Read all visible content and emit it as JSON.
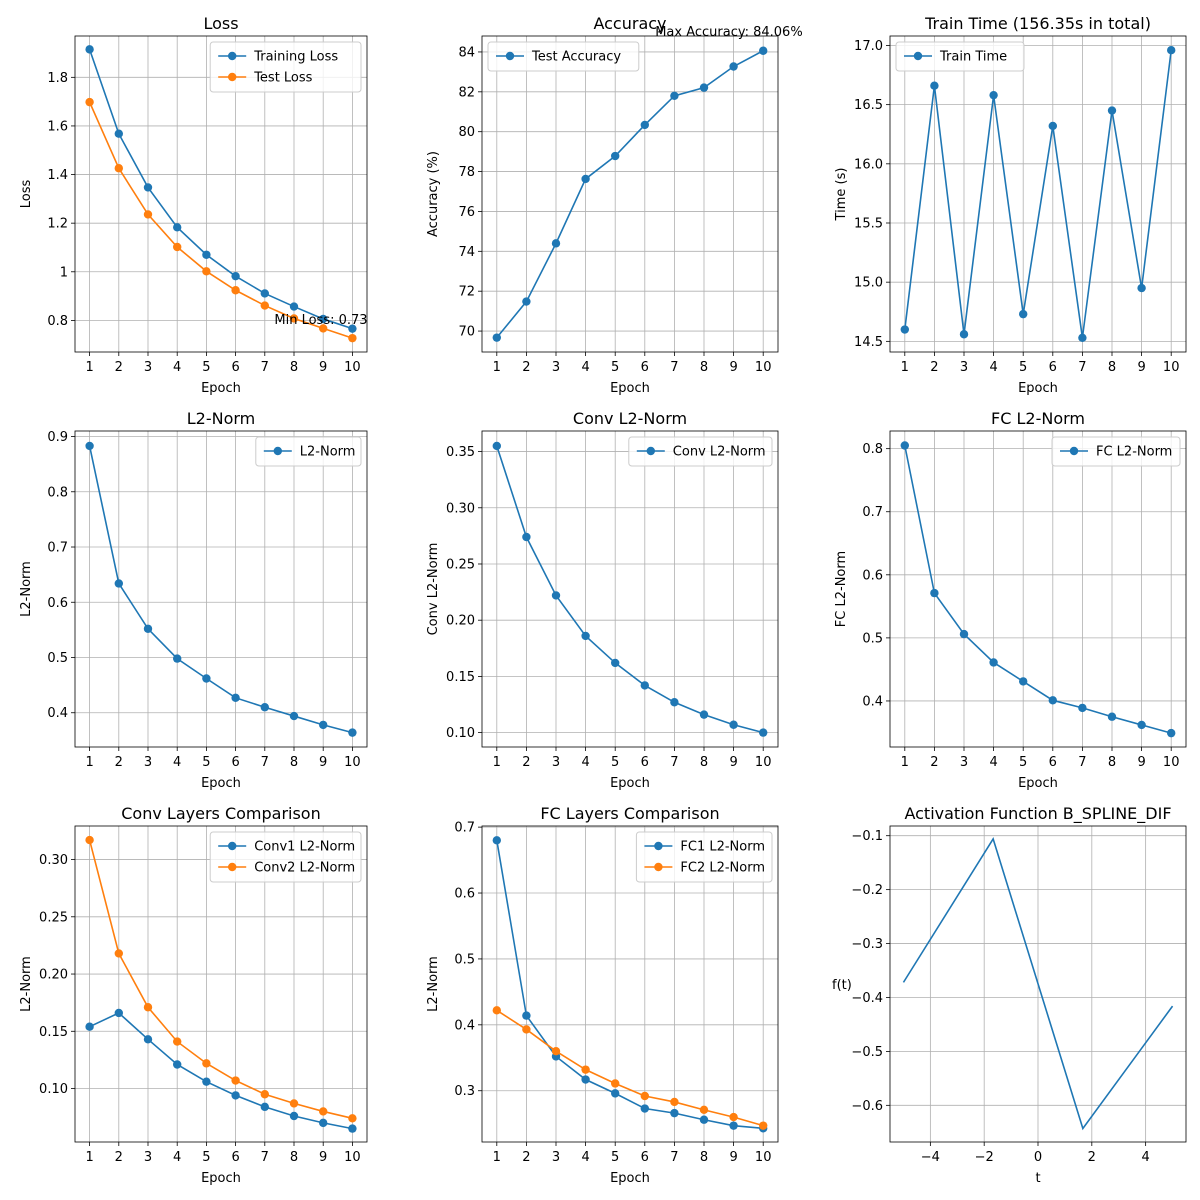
{
  "chart_data": [
    {
      "type": "line",
      "title": "Loss",
      "xlabel": "Epoch",
      "ylabel": "Loss",
      "x": [
        1,
        2,
        3,
        4,
        5,
        6,
        7,
        8,
        9,
        10
      ],
      "xlim": [
        0.5,
        10.5
      ],
      "ylim": [
        0.67,
        1.97
      ],
      "xticks": [
        1,
        2,
        3,
        4,
        5,
        6,
        7,
        8,
        9,
        10
      ],
      "yticks": [
        0.8,
        1.0,
        1.2,
        1.4,
        1.6,
        1.8
      ],
      "grid": true,
      "legend": "upper-right",
      "series": [
        {
          "name": "Training Loss",
          "color": "#1f77b4",
          "marker": true,
          "values": [
            1.915,
            1.568,
            1.347,
            1.183,
            1.07,
            0.982,
            0.911,
            0.857,
            0.806,
            0.766
          ]
        },
        {
          "name": "Test Loss",
          "color": "#ff7f0e",
          "marker": true,
          "values": [
            1.698,
            1.426,
            1.236,
            1.102,
            1.002,
            0.924,
            0.861,
            0.808,
            0.767,
            0.727
          ]
        }
      ],
      "annotations": [
        {
          "text": "Min Loss: 0.73",
          "x": 10,
          "y": 0.727
        }
      ]
    },
    {
      "type": "line",
      "title": "Accuracy",
      "xlabel": "Epoch",
      "ylabel": "Accuracy (%)",
      "x": [
        1,
        2,
        3,
        4,
        5,
        6,
        7,
        8,
        9,
        10
      ],
      "xlim": [
        0.5,
        10.5
      ],
      "ylim": [
        68.95,
        84.8
      ],
      "xticks": [
        1,
        2,
        3,
        4,
        5,
        6,
        7,
        8,
        9,
        10
      ],
      "yticks": [
        70,
        72,
        74,
        76,
        78,
        80,
        82,
        84
      ],
      "grid": true,
      "legend": "upper-left",
      "series": [
        {
          "name": "Test Accuracy",
          "color": "#1f77b4",
          "marker": true,
          "values": [
            69.67,
            71.48,
            74.4,
            77.63,
            78.78,
            80.34,
            81.8,
            82.21,
            83.27,
            84.06
          ]
        }
      ],
      "annotations": [
        {
          "text": "Max Accuracy: 84.06%",
          "x": 10,
          "y": 84.06
        }
      ]
    },
    {
      "type": "line",
      "title": "Train Time (156.35s in total)",
      "xlabel": "Epoch",
      "ylabel": "Time (s)",
      "x": [
        1,
        2,
        3,
        4,
        5,
        6,
        7,
        8,
        9,
        10
      ],
      "xlim": [
        0.5,
        10.5
      ],
      "ylim": [
        14.41,
        17.08
      ],
      "xticks": [
        1,
        2,
        3,
        4,
        5,
        6,
        7,
        8,
        9,
        10
      ],
      "yticks": [
        14.5,
        15.0,
        15.5,
        16.0,
        16.5,
        17.0
      ],
      "ytick_labels": [
        "14.5",
        "15.0",
        "15.5",
        "16.0",
        "16.5",
        "17.0"
      ],
      "grid": true,
      "legend": "upper-left",
      "series": [
        {
          "name": "Train Time",
          "color": "#1f77b4",
          "marker": true,
          "values": [
            14.6,
            16.66,
            14.56,
            16.58,
            14.73,
            16.32,
            14.53,
            16.45,
            14.95,
            16.96
          ]
        }
      ]
    },
    {
      "type": "line",
      "title": "L2-Norm",
      "xlabel": "Epoch",
      "ylabel": "L2-Norm",
      "x": [
        1,
        2,
        3,
        4,
        5,
        6,
        7,
        8,
        9,
        10
      ],
      "xlim": [
        0.5,
        10.5
      ],
      "ylim": [
        0.338,
        0.91
      ],
      "xticks": [
        1,
        2,
        3,
        4,
        5,
        6,
        7,
        8,
        9,
        10
      ],
      "yticks": [
        0.4,
        0.5,
        0.6,
        0.7,
        0.8,
        0.9
      ],
      "grid": true,
      "legend": "upper-right",
      "series": [
        {
          "name": "L2-Norm",
          "color": "#1f77b4",
          "marker": true,
          "values": [
            0.883,
            0.634,
            0.552,
            0.498,
            0.462,
            0.427,
            0.41,
            0.394,
            0.378,
            0.364
          ]
        }
      ]
    },
    {
      "type": "line",
      "title": "Conv L2-Norm",
      "xlabel": "Epoch",
      "ylabel": "Conv L2-Norm",
      "x": [
        1,
        2,
        3,
        4,
        5,
        6,
        7,
        8,
        9,
        10
      ],
      "xlim": [
        0.5,
        10.5
      ],
      "ylim": [
        0.0872,
        0.3683
      ],
      "xticks": [
        1,
        2,
        3,
        4,
        5,
        6,
        7,
        8,
        9,
        10
      ],
      "yticks": [
        0.1,
        0.15,
        0.2,
        0.25,
        0.3,
        0.35
      ],
      "ytick_labels": [
        "0.10",
        "0.15",
        "0.20",
        "0.25",
        "0.30",
        "0.35"
      ],
      "grid": true,
      "legend": "upper-right",
      "series": [
        {
          "name": "Conv L2-Norm",
          "color": "#1f77b4",
          "marker": true,
          "values": [
            0.355,
            0.274,
            0.222,
            0.186,
            0.162,
            0.142,
            0.127,
            0.116,
            0.107,
            0.1
          ]
        }
      ]
    },
    {
      "type": "line",
      "title": "FC L2-Norm",
      "xlabel": "Epoch",
      "ylabel": "FC L2-Norm",
      "x": [
        1,
        2,
        3,
        4,
        5,
        6,
        7,
        8,
        9,
        10
      ],
      "xlim": [
        0.5,
        10.5
      ],
      "ylim": [
        0.327,
        0.828
      ],
      "xticks": [
        1,
        2,
        3,
        4,
        5,
        6,
        7,
        8,
        9,
        10
      ],
      "yticks": [
        0.4,
        0.5,
        0.6,
        0.7,
        0.8
      ],
      "grid": true,
      "legend": "upper-right",
      "series": [
        {
          "name": "FC L2-Norm",
          "color": "#1f77b4",
          "marker": true,
          "values": [
            0.805,
            0.571,
            0.506,
            0.461,
            0.431,
            0.401,
            0.389,
            0.375,
            0.362,
            0.349
          ]
        }
      ]
    },
    {
      "type": "line",
      "title": "Conv Layers Comparison",
      "xlabel": "Epoch",
      "ylabel": "L2-Norm",
      "x": [
        1,
        2,
        3,
        4,
        5,
        6,
        7,
        8,
        9,
        10
      ],
      "xlim": [
        0.5,
        10.5
      ],
      "ylim": [
        0.0533,
        0.3293
      ],
      "xticks": [
        1,
        2,
        3,
        4,
        5,
        6,
        7,
        8,
        9,
        10
      ],
      "yticks": [
        0.1,
        0.15,
        0.2,
        0.25,
        0.3
      ],
      "ytick_labels": [
        "0.10",
        "0.15",
        "0.20",
        "0.25",
        "0.30"
      ],
      "grid": true,
      "legend": "upper-right",
      "series": [
        {
          "name": "Conv1 L2-Norm",
          "color": "#1f77b4",
          "marker": true,
          "values": [
            0.154,
            0.166,
            0.143,
            0.121,
            0.106,
            0.094,
            0.084,
            0.076,
            0.07,
            0.065
          ]
        },
        {
          "name": "Conv2 L2-Norm",
          "color": "#ff7f0e",
          "marker": true,
          "values": [
            0.317,
            0.218,
            0.171,
            0.141,
            0.122,
            0.107,
            0.095,
            0.087,
            0.08,
            0.074
          ]
        }
      ]
    },
    {
      "type": "line",
      "title": "FC Layers Comparison",
      "xlabel": "Epoch",
      "ylabel": "L2-Norm",
      "x": [
        1,
        2,
        3,
        4,
        5,
        6,
        7,
        8,
        9,
        10
      ],
      "xlim": [
        0.5,
        10.5
      ],
      "ylim": [
        0.2222,
        0.7017
      ],
      "xticks": [
        1,
        2,
        3,
        4,
        5,
        6,
        7,
        8,
        9,
        10
      ],
      "yticks": [
        0.3,
        0.4,
        0.5,
        0.6,
        0.7
      ],
      "grid": true,
      "legend": "upper-right",
      "series": [
        {
          "name": "FC1 L2-Norm",
          "color": "#1f77b4",
          "marker": true,
          "values": [
            0.68,
            0.414,
            0.352,
            0.317,
            0.296,
            0.273,
            0.266,
            0.256,
            0.247,
            0.243
          ]
        },
        {
          "name": "FC2 L2-Norm",
          "color": "#ff7f0e",
          "marker": true,
          "values": [
            0.422,
            0.393,
            0.36,
            0.332,
            0.311,
            0.292,
            0.283,
            0.271,
            0.26,
            0.247
          ]
        }
      ]
    },
    {
      "type": "line",
      "title": "Activation Function B_SPLINE_DIF",
      "xlabel": "t",
      "ylabel": "f(t)",
      "x": [
        -5,
        -1.667,
        1.667,
        5
      ],
      "xlim": [
        -5.5,
        5.5
      ],
      "ylim": [
        -0.668,
        -0.082
      ],
      "xticks": [
        -4,
        -2,
        0,
        2,
        4
      ],
      "xtick_labels": [
        "−4",
        "−2",
        "0",
        "2",
        "4"
      ],
      "yticks": [
        -0.6,
        -0.5,
        -0.4,
        -0.3,
        -0.2,
        -0.1
      ],
      "ytick_labels": [
        "−0.6",
        "−0.5",
        "−0.4",
        "−0.3",
        "−0.2",
        "−0.1"
      ],
      "grid": true,
      "ylabel_horizontal": true,
      "series": [
        {
          "color": "#1f77b4",
          "marker": false,
          "values": [
            -0.372,
            -0.106,
            -0.643,
            -0.416
          ]
        }
      ]
    }
  ]
}
